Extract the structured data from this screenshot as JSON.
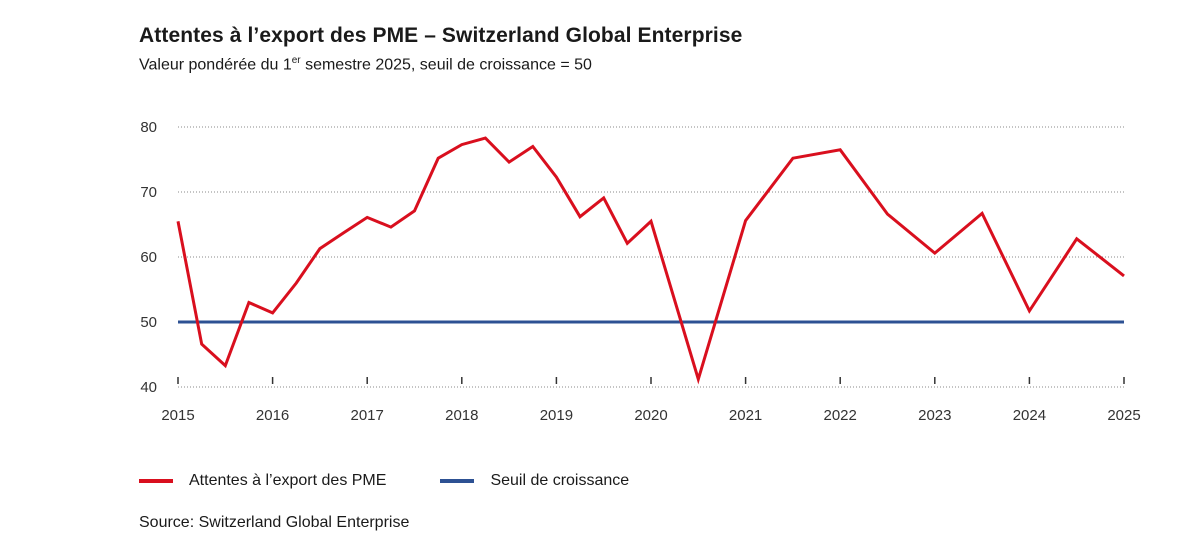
{
  "header": {
    "title": "Attentes à l’export des PME – Switzerland Global Enterprise",
    "subtitle_pre": "Valeur pondérée du 1",
    "subtitle_sup": "er",
    "subtitle_post": " semestre 2025, seuil de croissance = 50"
  },
  "colors": {
    "series": "#d90f1e",
    "threshold": "#2d5193"
  },
  "chart_data": {
    "type": "line",
    "title": "Attentes à l’export des PME – Switzerland Global Enterprise",
    "xlabel": "",
    "ylabel": "",
    "x_ticks": [
      "2015",
      "2016",
      "2017",
      "2018",
      "2019",
      "2020",
      "2021",
      "2022",
      "2023",
      "2024",
      "2025"
    ],
    "y_ticks": [
      "40",
      "50",
      "60",
      "70",
      "80"
    ],
    "xlim": [
      2015,
      2025
    ],
    "ylim": [
      40,
      80
    ],
    "grid": true,
    "legend_position": "bottom-left",
    "series": [
      {
        "name": "Attentes à l’export des PME",
        "x": [
          2015.0,
          2015.25,
          2015.5,
          2015.75,
          2016.0,
          2016.25,
          2016.5,
          2016.75,
          2017.0,
          2017.25,
          2017.5,
          2017.75,
          2018.0,
          2018.25,
          2018.5,
          2018.75,
          2019.0,
          2019.25,
          2019.5,
          2019.75,
          2020.0,
          2020.5,
          2021.0,
          2021.5,
          2022.0,
          2022.5,
          2023.0,
          2023.5,
          2024.0,
          2024.5,
          2025.0
        ],
        "values": [
          65.5,
          46.6,
          43.3,
          53.0,
          51.4,
          56.0,
          61.3,
          63.7,
          66.1,
          64.6,
          67.1,
          75.2,
          77.3,
          78.3,
          74.6,
          77.0,
          72.3,
          66.2,
          69.1,
          62.1,
          65.5,
          41.2,
          65.6,
          75.2,
          76.5,
          66.6,
          60.6,
          66.7,
          51.7,
          62.8,
          57.1
        ]
      },
      {
        "name": "Seuil de croissance",
        "x": [
          2015,
          2025
        ],
        "values": [
          50,
          50
        ]
      }
    ]
  },
  "legend": {
    "series_label": "Attentes à l’export des PME",
    "threshold_label": "Seuil de croissance"
  },
  "source": "Source: Switzerland Global Enterprise"
}
